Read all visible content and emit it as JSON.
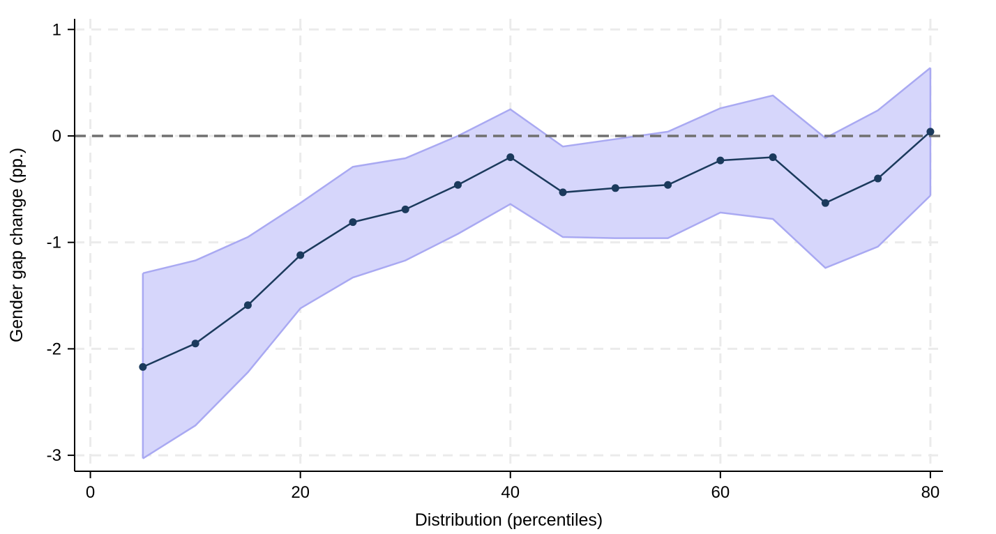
{
  "chart_data": {
    "type": "line",
    "xlabel": "Distribution (percentiles)",
    "ylabel": "Gender gap change (pp.)",
    "xlim": [
      -1.5,
      81.2
    ],
    "ylim": [
      -3.15,
      1.1
    ],
    "x_ticks": [
      0,
      20,
      40,
      60,
      80
    ],
    "y_ticks": [
      1,
      0,
      -1,
      -2,
      -3
    ],
    "x_tick_labels": [
      "0",
      "20",
      "40",
      "60",
      "80"
    ],
    "y_tick_labels": [
      "1",
      "0",
      "-1",
      "-2",
      "-3"
    ],
    "reference_line": 0,
    "grid": true,
    "colors": {
      "line": "#1b3a5c",
      "marker": "#1b3a5c",
      "band_fill": "#d6d6fb",
      "band_edge": "#a9a9f2",
      "reference": "#707070",
      "grid": "#ebebeb"
    },
    "x": [
      5,
      10,
      15,
      20,
      25,
      30,
      35,
      40,
      45,
      50,
      55,
      60,
      65,
      70,
      75,
      80
    ],
    "series": [
      {
        "values": [
          -2.17,
          -1.95,
          -1.59,
          -1.12,
          -0.81,
          -0.69,
          -0.46,
          -0.2,
          -0.53,
          -0.49,
          -0.46,
          -0.23,
          -0.2,
          -0.63,
          -0.4,
          0.04
        ]
      }
    ],
    "band": {
      "upper": [
        -1.29,
        -1.17,
        -0.95,
        -0.63,
        -0.29,
        -0.21,
        0.0,
        0.25,
        -0.1,
        -0.03,
        0.04,
        0.26,
        0.38,
        -0.02,
        0.24,
        0.64
      ],
      "lower": [
        -3.03,
        -2.72,
        -2.22,
        -1.62,
        -1.33,
        -1.17,
        -0.92,
        -0.64,
        -0.95,
        -0.96,
        -0.96,
        -0.72,
        -0.78,
        -1.24,
        -1.04,
        -0.56
      ]
    }
  }
}
